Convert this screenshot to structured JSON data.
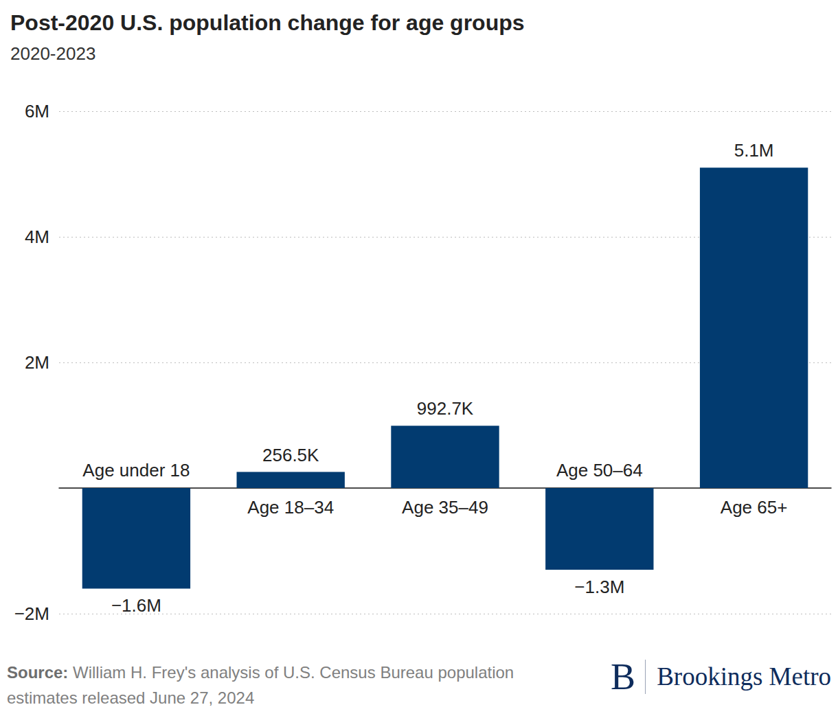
{
  "chart_data": {
    "type": "bar",
    "title": "Post-2020 U.S. population change for age groups",
    "subtitle": "2020-2023",
    "categories": [
      "Age under 18",
      "Age 18–34",
      "Age 35–49",
      "Age 50–64",
      "Age 65+"
    ],
    "values": [
      -1600000,
      256500,
      992700,
      -1300000,
      5100000
    ],
    "value_labels": [
      "−1.6M",
      "256.5K",
      "992.7K",
      "−1.3M",
      "5.1M"
    ],
    "color": "#023b70",
    "ylim": [
      -2000000,
      6000000
    ],
    "yticks": [
      {
        "value": -2000000,
        "label": "−2M"
      },
      {
        "value": 2000000,
        "label": "2M"
      },
      {
        "value": 4000000,
        "label": "4M"
      },
      {
        "value": 6000000,
        "label": "6M"
      }
    ],
    "grid": true,
    "data_labels": true,
    "source_label": "Source:",
    "source": "William H. Frey's analysis of U.S. Census Bureau population estimates released June 27, 2024",
    "logo_mark": "B",
    "logo": "Brookings Metro"
  }
}
